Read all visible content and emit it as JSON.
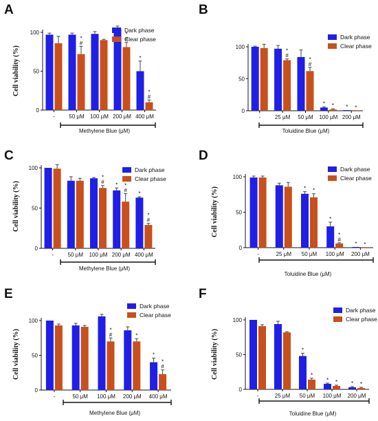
{
  "colors": {
    "dark": "#1f1fe6",
    "clear": "#c8501c",
    "axis": "#111111",
    "error": "#444444"
  },
  "chart_data": [
    {
      "panel": "A",
      "type": "bar",
      "categories": [
        "-",
        "50 μM",
        "100 μM",
        "200 μM",
        "400 μM"
      ],
      "ylabel": "Cell viability (%)",
      "ylim": [
        0,
        100
      ],
      "yticks": [
        0,
        50,
        100
      ],
      "treatment_label": "Methylene Blue (μM)",
      "legend_position": "top-right",
      "series": [
        {
          "name": "Dark phase",
          "values": [
            97,
            97,
            98,
            105,
            50
          ],
          "errors": [
            2,
            2,
            3,
            3,
            13
          ],
          "marks": [
            "",
            "",
            "",
            "",
            "*"
          ]
        },
        {
          "name": "Clear phase",
          "values": [
            86,
            72,
            90,
            81,
            10
          ],
          "errors": [
            9,
            10,
            1,
            6,
            3
          ],
          "marks": [
            "",
            "*#",
            "",
            "*#",
            "*#"
          ]
        }
      ]
    },
    {
      "panel": "B",
      "type": "bar",
      "categories": [
        "-",
        "25 μM",
        "50 μM",
        "100 μM",
        "200 μM"
      ],
      "ylabel": "",
      "ylim": [
        0,
        100
      ],
      "yticks": [
        0,
        50,
        100
      ],
      "treatment_label": "Toluidine Blue  (μM)",
      "legend_position": "top-right",
      "series": [
        {
          "name": "Dark phase",
          "values": [
            100,
            97,
            84,
            5,
            1
          ],
          "errors": [
            1,
            5,
            11,
            1,
            0
          ],
          "marks": [
            "",
            "",
            "",
            "*",
            "*"
          ]
        },
        {
          "name": "Clear phase",
          "values": [
            98,
            79,
            62,
            2,
            0
          ],
          "errors": [
            6,
            2,
            6,
            1,
            0
          ],
          "marks": [
            "",
            "*#",
            "*#",
            "*",
            "*"
          ]
        }
      ]
    },
    {
      "panel": "C",
      "type": "bar",
      "categories": [
        "-",
        "50 μM",
        "100 μM",
        "200 μM",
        "400 μM"
      ],
      "ylabel": "Cell viability (%)",
      "ylim": [
        0,
        100
      ],
      "yticks": [
        0,
        50,
        100
      ],
      "treatment_label": "Methylene Blue (μM)",
      "legend_position": "top-right",
      "series": [
        {
          "name": "Dark phase",
          "values": [
            100,
            84,
            87,
            72,
            63
          ],
          "errors": [
            0,
            5,
            1,
            3,
            1
          ],
          "marks": [
            "",
            "",
            "",
            "*",
            "*"
          ]
        },
        {
          "name": "Clear phase",
          "values": [
            99,
            84,
            75,
            58,
            29
          ],
          "errors": [
            5,
            3,
            3,
            10,
            2
          ],
          "marks": [
            "",
            "",
            "*#",
            "*#",
            "*#"
          ]
        }
      ]
    },
    {
      "panel": "D",
      "type": "bar",
      "categories": [
        "-",
        "25 μM",
        "50 μM",
        "100 μM",
        "200 μM"
      ],
      "ylabel": "Cell viability (%)",
      "ylim": [
        0,
        100
      ],
      "yticks": [
        0,
        50,
        100
      ],
      "treatment_label": "Toluidine Blue  (μM)",
      "legend_position": "top-right",
      "series": [
        {
          "name": "Dark phase",
          "values": [
            99,
            88,
            76,
            30,
            1
          ],
          "errors": [
            2,
            3,
            3,
            6,
            0
          ],
          "marks": [
            "",
            "",
            "*",
            "*",
            "*"
          ]
        },
        {
          "name": "Clear phase",
          "values": [
            99,
            86,
            71,
            6,
            0
          ],
          "errors": [
            2,
            6,
            5,
            1,
            0
          ],
          "marks": [
            "",
            "",
            "*",
            "*#",
            "*"
          ]
        }
      ]
    },
    {
      "panel": "E",
      "type": "bar",
      "categories": [
        "-",
        "50 μM",
        "100 μM",
        "200 μM",
        "400 μM"
      ],
      "ylabel": "Cell viability (%)",
      "ylim": [
        0,
        100
      ],
      "yticks": [
        0,
        50,
        100
      ],
      "treatment_label": "Methylene Blue (μM)",
      "legend_position": "top-right",
      "series": [
        {
          "name": "Dark phase",
          "values": [
            100,
            93,
            106,
            86,
            40
          ],
          "errors": [
            0,
            3,
            3,
            5,
            6
          ],
          "marks": [
            "",
            "",
            "",
            "",
            "*"
          ]
        },
        {
          "name": "Clear phase",
          "values": [
            93,
            91,
            70,
            70,
            23
          ],
          "errors": [
            2,
            2,
            5,
            4,
            6
          ],
          "marks": [
            "",
            "",
            "*#",
            "*",
            "*#"
          ]
        }
      ]
    },
    {
      "panel": "F",
      "type": "bar",
      "categories": [
        "-",
        "25 μM",
        "50 μM",
        "100 μM",
        "200 μM"
      ],
      "ylabel": "Cell viability (%)",
      "ylim": [
        0,
        100
      ],
      "yticks": [
        0,
        50,
        100
      ],
      "treatment_label": "Toluidine Blue  (μM)",
      "legend_position": "top-right",
      "series": [
        {
          "name": "Dark phase",
          "values": [
            100,
            94,
            48,
            8,
            3
          ],
          "errors": [
            0,
            4,
            4,
            1,
            1
          ],
          "marks": [
            "",
            "",
            "*",
            "*",
            "*"
          ]
        },
        {
          "name": "Clear phase",
          "values": [
            91,
            82,
            14,
            5,
            2
          ],
          "errors": [
            2,
            1,
            2,
            1,
            1
          ],
          "marks": [
            "",
            "",
            "*",
            "*",
            "*"
          ]
        }
      ]
    }
  ]
}
